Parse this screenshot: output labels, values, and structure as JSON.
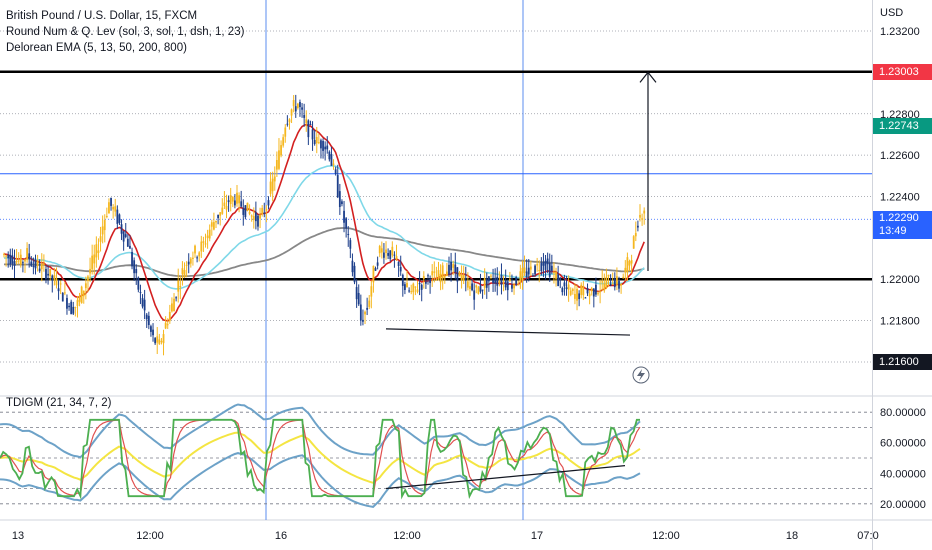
{
  "legend": {
    "symbol": "British Pound / U.S. Dollar, 15, FXCM",
    "indicator1": "Round Num & Q. Lev (sol, 3, sol, 1, dsh, 1, 23)",
    "indicator2": "Delorean EMA (5, 13, 50, 200, 800)"
  },
  "oscillator_legend": "TDIGM (21, 34, 7, 2)",
  "price_axis": {
    "currency": "USD",
    "ticks": [
      "1.23200",
      "1.22800",
      "1.22600",
      "1.22400",
      "1.22000",
      "1.21800"
    ]
  },
  "price_labels": {
    "resistance": {
      "text": "1.23003",
      "color": "#f23645"
    },
    "ema": {
      "text": "1.22743",
      "color": "#089981"
    },
    "current": {
      "text": "1.22290",
      "countdown": "13:49",
      "color": "#2962ff"
    },
    "support_low": {
      "text": "1.21600",
      "color": "#131722"
    }
  },
  "oscillator_axis": {
    "ticks": [
      "80.00000",
      "60.00000",
      "40.00000",
      "20.00000"
    ]
  },
  "time_axis": {
    "labels": [
      "13",
      "12:00",
      "16",
      "12:00",
      "17",
      "12:00",
      "18",
      "07:0"
    ]
  },
  "colors": {
    "bull_candle": "#f5b71f",
    "bear_candle": "#1c3e8a",
    "ema_fast": "#d32020",
    "ema_mid": "#7fd8e8",
    "ema_slow": "#888888",
    "osc_band": "#6da2c8",
    "osc_green": "#4caf50",
    "osc_red": "#e05050",
    "osc_yellow": "#f4e542",
    "key_level": "#000000",
    "blue_level": "#2962ff"
  },
  "icons": {
    "lightning": "lightning-icon"
  },
  "chart_data": {
    "type": "candlestick",
    "symbol": "GBP/USD",
    "timeframe": "15",
    "y_range": [
      1.2145,
      1.2335
    ],
    "key_levels": [
      1.23003,
      1.22
    ],
    "blue_level": 1.2251,
    "current_price": 1.2229,
    "x_labels": [
      "13",
      "12:00",
      "16",
      "12:00",
      "17",
      "12:00",
      "18",
      "07:0"
    ],
    "price_path": [
      1.2212,
      1.2211,
      1.221,
      1.2208,
      1.2212,
      1.2207,
      1.2206,
      1.2204,
      1.22,
      1.2197,
      1.2191,
      1.2186,
      1.2188,
      1.2196,
      1.2205,
      1.2213,
      1.2226,
      1.2237,
      1.2232,
      1.2224,
      1.2218,
      1.2203,
      1.2192,
      1.218,
      1.2171,
      1.2168,
      1.2178,
      1.2187,
      1.2198,
      1.2206,
      1.2212,
      1.2213,
      1.2217,
      1.2224,
      1.223,
      1.2233,
      1.2238,
      1.2239,
      1.2236,
      1.2233,
      1.223,
      1.2229,
      1.2236,
      1.2247,
      1.226,
      1.2276,
      1.2282,
      1.2285,
      1.2276,
      1.2271,
      1.2266,
      1.2266,
      1.2261,
      1.2248,
      1.2233,
      1.2218,
      1.2198,
      1.218,
      1.2186,
      1.2203,
      1.2214,
      1.2214,
      1.2212,
      1.2205,
      1.2196,
      1.2193,
      1.2197,
      1.2199,
      1.2202,
      1.22,
      1.2203,
      1.2206,
      1.2204,
      1.22,
      1.2197,
      1.2194,
      1.2196,
      1.2199,
      1.22,
      1.22,
      1.2199,
      1.2198,
      1.22,
      1.2203,
      1.2204,
      1.2206,
      1.2209,
      1.2205,
      1.2201,
      1.2196,
      1.2194,
      1.2192,
      1.2194,
      1.2193,
      1.2195,
      1.2196,
      1.2199,
      1.22,
      1.2197,
      1.2204,
      1.2213,
      1.2229
    ],
    "oscillator": {
      "y_range": [
        12,
        88
      ],
      "levels": [
        80,
        70,
        50,
        30,
        20
      ]
    }
  }
}
